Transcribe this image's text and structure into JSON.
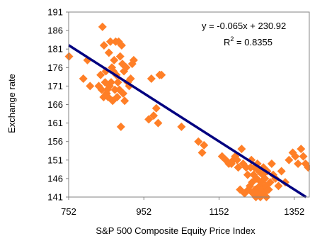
{
  "chart_data": {
    "type": "scatter",
    "xlabel": "S&P 500 Composite Equity Price Index",
    "ylabel": "Exchange rate",
    "xlim": [
      752,
      1392
    ],
    "ylim": [
      141,
      191
    ],
    "x_ticks": [
      "752",
      "952",
      "1152",
      "1352"
    ],
    "y_ticks": [
      "141",
      "146",
      "151",
      "156",
      "161",
      "166",
      "171",
      "176",
      "181",
      "186",
      "191"
    ],
    "grid": false,
    "colors": {
      "marker": "#ff7f27",
      "trendline": "#000080"
    },
    "trendline": {
      "slope": -0.065,
      "intercept": 230.92
    },
    "annotations": {
      "equation": "y = -0.065x + 230.92",
      "r_squared_prefix": "R",
      "r_squared_exp": "2",
      "r_squared_value": " = 0.8355"
    },
    "points": [
      [
        753,
        179
      ],
      [
        791,
        173
      ],
      [
        802,
        178
      ],
      [
        809,
        171
      ],
      [
        832,
        171
      ],
      [
        837,
        174
      ],
      [
        840,
        170
      ],
      [
        842,
        187
      ],
      [
        845,
        168
      ],
      [
        846,
        182
      ],
      [
        849,
        172
      ],
      [
        851,
        175
      ],
      [
        853,
        169
      ],
      [
        855,
        170
      ],
      [
        857,
        168
      ],
      [
        859,
        180
      ],
      [
        861,
        171
      ],
      [
        863,
        183
      ],
      [
        865,
        172
      ],
      [
        867,
        176
      ],
      [
        869,
        167
      ],
      [
        871,
        175
      ],
      [
        873,
        178
      ],
      [
        875,
        170
      ],
      [
        877,
        183
      ],
      [
        879,
        174
      ],
      [
        881,
        168
      ],
      [
        883,
        172
      ],
      [
        885,
        183
      ],
      [
        887,
        170
      ],
      [
        889,
        179
      ],
      [
        891,
        160
      ],
      [
        893,
        182
      ],
      [
        895,
        177
      ],
      [
        897,
        169
      ],
      [
        899,
        175
      ],
      [
        901,
        167
      ],
      [
        905,
        176
      ],
      [
        909,
        172
      ],
      [
        913,
        171
      ],
      [
        917,
        173
      ],
      [
        921,
        177
      ],
      [
        925,
        178
      ],
      [
        965,
        162
      ],
      [
        972,
        173
      ],
      [
        978,
        163
      ],
      [
        985,
        165
      ],
      [
        990,
        161
      ],
      [
        994,
        174
      ],
      [
        999,
        174
      ],
      [
        1052,
        160
      ],
      [
        1097,
        156
      ],
      [
        1107,
        153
      ],
      [
        1112,
        155
      ],
      [
        1160,
        152
      ],
      [
        1170,
        151
      ],
      [
        1178,
        150
      ],
      [
        1185,
        150
      ],
      [
        1190,
        151
      ],
      [
        1195,
        152
      ],
      [
        1200,
        151
      ],
      [
        1203,
        149
      ],
      [
        1208,
        143
      ],
      [
        1212,
        154
      ],
      [
        1216,
        150
      ],
      [
        1220,
        142
      ],
      [
        1224,
        149
      ],
      [
        1228,
        147
      ],
      [
        1230,
        143
      ],
      [
        1234,
        144
      ],
      [
        1236,
        149
      ],
      [
        1238,
        151
      ],
      [
        1240,
        145
      ],
      [
        1242,
        142
      ],
      [
        1244,
        147
      ],
      [
        1246,
        149
      ],
      [
        1248,
        143
      ],
      [
        1250,
        141
      ],
      [
        1252,
        146
      ],
      [
        1254,
        150
      ],
      [
        1256,
        142
      ],
      [
        1258,
        148
      ],
      [
        1260,
        144
      ],
      [
        1262,
        141
      ],
      [
        1264,
        145
      ],
      [
        1266,
        143
      ],
      [
        1268,
        147
      ],
      [
        1270,
        149
      ],
      [
        1272,
        142
      ],
      [
        1274,
        146
      ],
      [
        1276,
        144
      ],
      [
        1278,
        141
      ],
      [
        1280,
        148
      ],
      [
        1284,
        143
      ],
      [
        1288,
        145
      ],
      [
        1292,
        150
      ],
      [
        1296,
        147
      ],
      [
        1302,
        146
      ],
      [
        1310,
        144
      ],
      [
        1318,
        148
      ],
      [
        1328,
        145
      ],
      [
        1338,
        151
      ],
      [
        1348,
        153
      ],
      [
        1355,
        152
      ],
      [
        1362,
        150
      ],
      [
        1370,
        154
      ],
      [
        1376,
        152
      ],
      [
        1382,
        150
      ],
      [
        1389,
        149
      ]
    ]
  }
}
